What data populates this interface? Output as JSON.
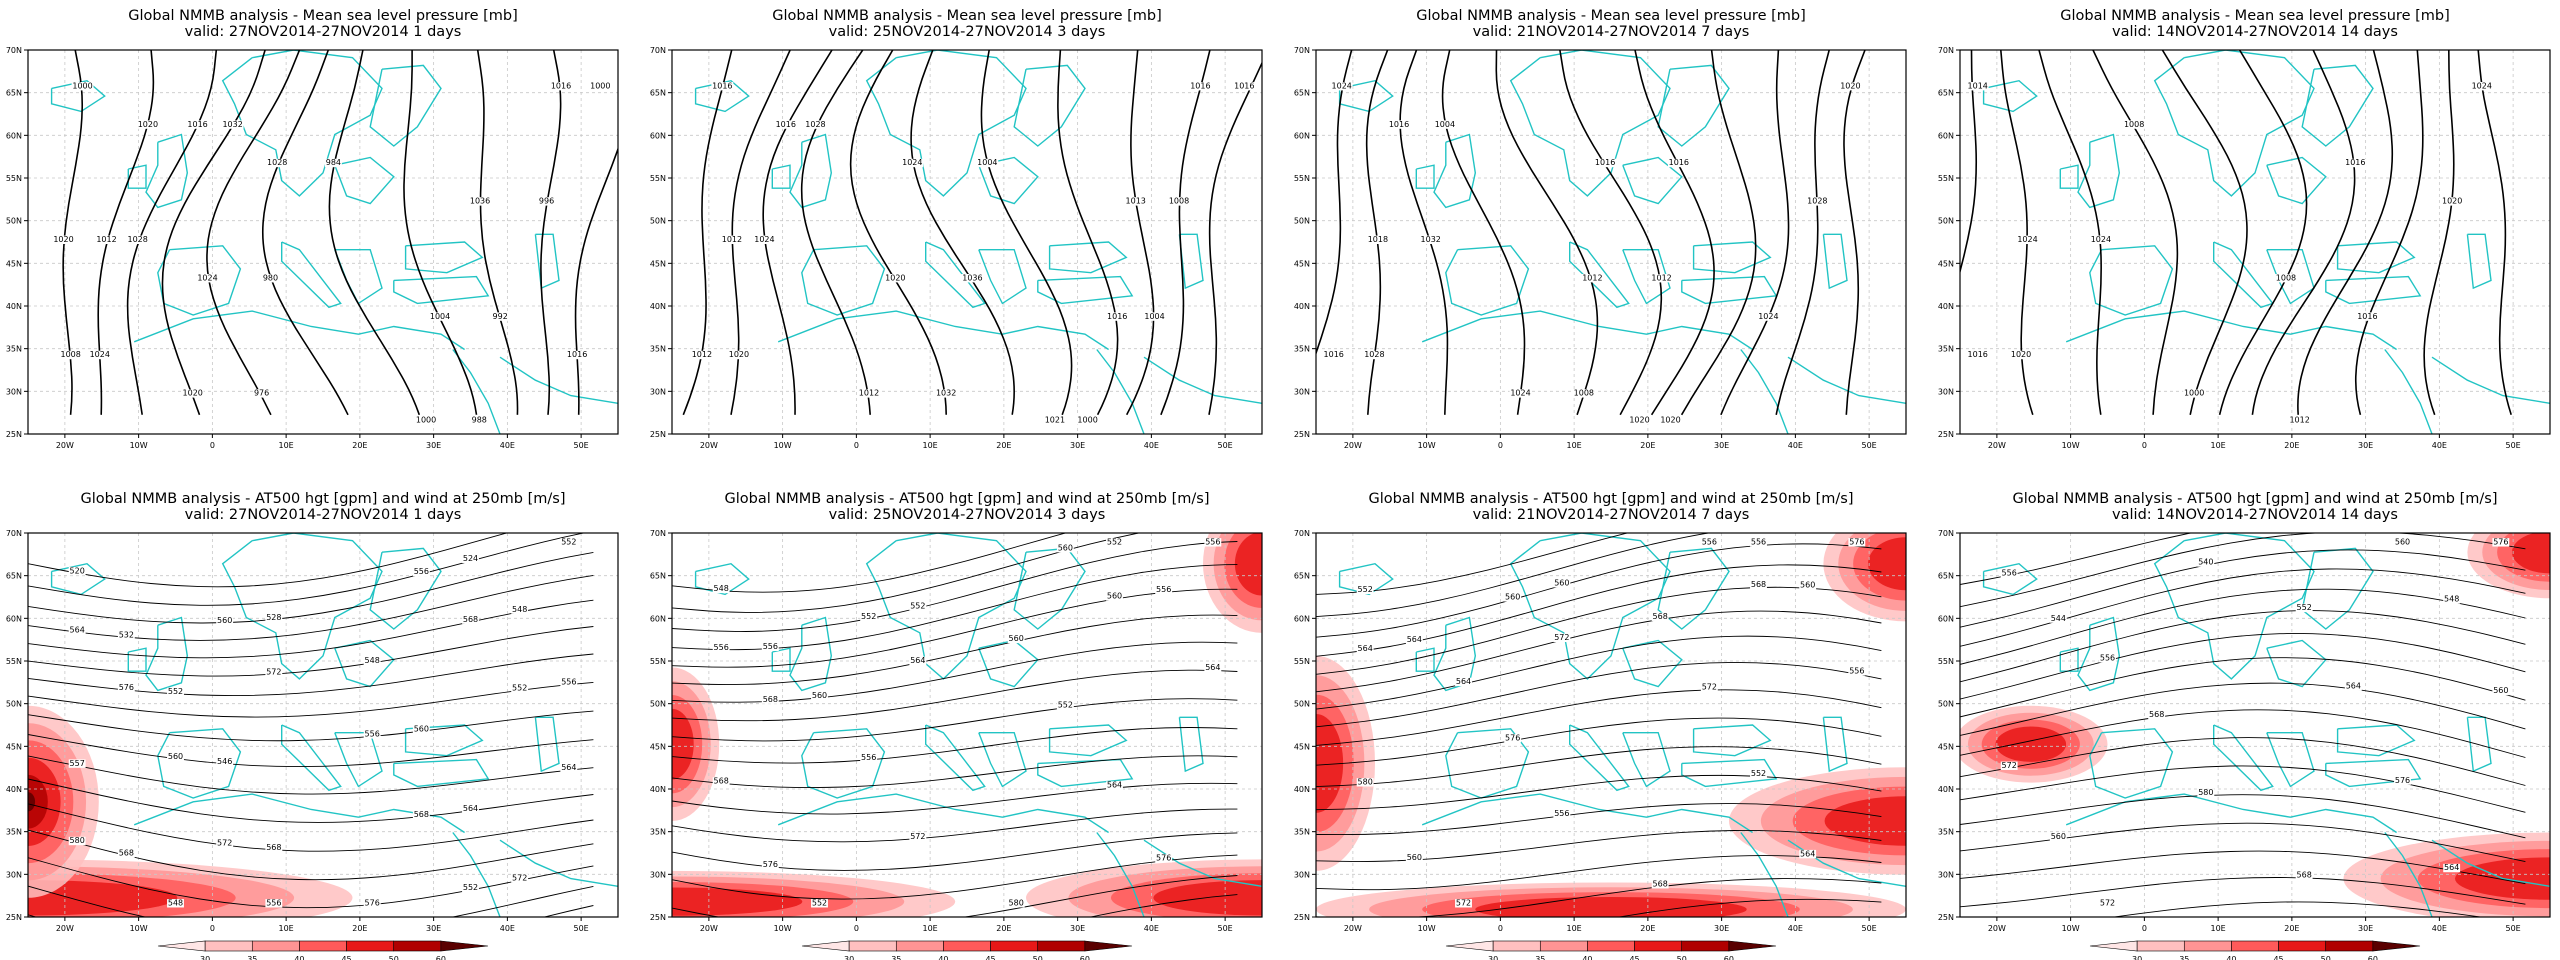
{
  "rows": [
    {
      "title": "Global NMMB analysis - Mean sea level pressure [mb]",
      "kind": "mslp",
      "panels": [
        {
          "valid": "valid: 27NOV2014-27NOV2014",
          "days": "1 days",
          "labels": [
            "1000",
            "1024",
            "1028",
            "1032",
            "976",
            "980",
            "984",
            "988",
            "992",
            "996",
            "1000",
            "1008",
            "1012",
            "1016",
            "1020",
            "1024",
            "1028",
            "1000",
            "1004",
            "1036",
            "1016",
            "1016",
            "1020",
            "1020"
          ]
        },
        {
          "valid": "valid: 25NOV2014-27NOV2014",
          "days": "3 days",
          "labels": [
            "1016",
            "1020",
            "1024",
            "1028",
            "1032",
            "1036",
            "1004",
            "1000",
            "1004",
            "1008",
            "1016",
            "1012",
            "1012",
            "1016",
            "1012",
            "1020",
            "1024",
            "1021",
            "1016",
            "1013",
            "1016"
          ]
        },
        {
          "valid": "valid: 21NOV2014-27NOV2014",
          "days": "7 days",
          "labels": [
            "1024",
            "1028",
            "1032",
            "1004",
            "1008",
            "1012",
            "1016",
            "1020",
            "1024",
            "1028",
            "1020",
            "1016",
            "1018",
            "1016",
            "1024",
            "1012",
            "1016",
            "1020"
          ]
        },
        {
          "valid": "valid: 14NOV2014-27NOV2014",
          "days": "14 days",
          "labels": [
            "1014",
            "1020",
            "1024",
            "1008",
            "1000",
            "1008",
            "1016",
            "1012",
            "1016",
            "1020",
            "1024",
            "1016",
            "1024"
          ]
        }
      ]
    },
    {
      "title": "Global NMMB analysis - AT500 hgt [gpm] and wind at 250mb [m/s]",
      "kind": "z500",
      "panels": [
        {
          "valid": "valid: 27NOV2014-27NOV2014",
          "days": "1 days",
          "labels": [
            "520",
            "524",
            "528",
            "532",
            "548",
            "548",
            "552",
            "556",
            "560",
            "546",
            "557",
            "564",
            "568",
            "568",
            "572",
            "576",
            "548",
            "552",
            "556",
            "560",
            "564",
            "568",
            "572",
            "576",
            "552",
            "556",
            "560",
            "564",
            "568",
            "572",
            "580",
            "552",
            "556"
          ]
        },
        {
          "valid": "valid: 25NOV2014-27NOV2014",
          "days": "3 days",
          "labels": [
            "548",
            "552",
            "552",
            "556",
            "556",
            "560",
            "560",
            "564",
            "552",
            "556",
            "568",
            "564",
            "572",
            "576",
            "576",
            "580",
            "552",
            "556",
            "560",
            "552",
            "556",
            "560",
            "564",
            "568"
          ]
        },
        {
          "valid": "valid: 21NOV2014-27NOV2014",
          "days": "7 days",
          "labels": [
            "552",
            "556",
            "560",
            "564",
            "560",
            "568",
            "564",
            "556",
            "572",
            "576",
            "580",
            "552",
            "556",
            "560",
            "564",
            "568",
            "572",
            "576",
            "556",
            "560",
            "564",
            "568",
            "572"
          ]
        },
        {
          "valid": "valid: 14NOV2014-27NOV2014",
          "days": "14 days",
          "labels": [
            "556",
            "560",
            "540",
            "544",
            "548",
            "552",
            "556",
            "560",
            "564",
            "568",
            "572",
            "576",
            "580",
            "560",
            "564",
            "568",
            "572",
            "576"
          ]
        }
      ]
    }
  ],
  "lat_ticks": [
    "70N",
    "65N",
    "60N",
    "55N",
    "50N",
    "45N",
    "40N",
    "35N",
    "30N",
    "25N"
  ],
  "lon_ticks": [
    "20W",
    "10W",
    "0",
    "10E",
    "20E",
    "30E",
    "40E",
    "50E"
  ],
  "colorbar_ticks": [
    "30",
    "35",
    "40",
    "45",
    "50",
    "60"
  ],
  "colorbar_colors": [
    "#ffe6e6",
    "#ffc0c0",
    "#ff9494",
    "#ff5a5a",
    "#e81818",
    "#b00000",
    "#5a0000"
  ],
  "colors": {
    "coast": "#22c4c4",
    "contour": "#000000",
    "grid": "#c8c8c8"
  },
  "chart_data": [
    {
      "type": "contour-map",
      "title": "Global NMMB analysis - Mean sea level pressure [mb]",
      "subtitle": "valid: 27NOV2014-27NOV2014 1 days",
      "xlim": [
        "25W",
        "55E"
      ],
      "ylim": [
        "25N",
        "70N"
      ],
      "contour_interval": 4,
      "units": "mb"
    },
    {
      "type": "contour-map",
      "title": "Global NMMB analysis - Mean sea level pressure [mb]",
      "subtitle": "valid: 25NOV2014-27NOV2014 3 days",
      "xlim": [
        "25W",
        "55E"
      ],
      "ylim": [
        "25N",
        "70N"
      ],
      "contour_interval": 4,
      "units": "mb"
    },
    {
      "type": "contour-map",
      "title": "Global NMMB analysis - Mean sea level pressure [mb]",
      "subtitle": "valid: 21NOV2014-27NOV2014 7 days",
      "xlim": [
        "25W",
        "55E"
      ],
      "ylim": [
        "25N",
        "70N"
      ],
      "contour_interval": 4,
      "units": "mb"
    },
    {
      "type": "contour-map",
      "title": "Global NMMB analysis - Mean sea level pressure [mb]",
      "subtitle": "valid: 14NOV2014-27NOV2014 14 days",
      "xlim": [
        "25W",
        "55E"
      ],
      "ylim": [
        "25N",
        "70N"
      ],
      "contour_interval": 4,
      "units": "mb"
    },
    {
      "type": "contour-map",
      "title": "Global NMMB analysis - AT500 hgt [gpm] and wind at 250mb [m/s]",
      "subtitle": "valid: 27NOV2014-27NOV2014 1 days",
      "xlim": [
        "25W",
        "55E"
      ],
      "ylim": [
        "25N",
        "70N"
      ],
      "contour_interval": 4,
      "shading_levels": [
        30,
        35,
        40,
        45,
        50,
        60
      ]
    },
    {
      "type": "contour-map",
      "title": "Global NMMB analysis - AT500 hgt [gpm] and wind at 250mb [m/s]",
      "subtitle": "valid: 25NOV2014-27NOV2014 3 days",
      "xlim": [
        "25W",
        "55E"
      ],
      "ylim": [
        "25N",
        "70N"
      ],
      "contour_interval": 4,
      "shading_levels": [
        30,
        35,
        40,
        45,
        50,
        60
      ]
    },
    {
      "type": "contour-map",
      "title": "Global NMMB analysis - AT500 hgt [gpm] and wind at 250mb [m/s]",
      "subtitle": "valid: 21NOV2014-27NOV2014 7 days",
      "xlim": [
        "25W",
        "55E"
      ],
      "ylim": [
        "25N",
        "70N"
      ],
      "contour_interval": 4,
      "shading_levels": [
        30,
        35,
        40,
        45,
        50,
        60
      ]
    },
    {
      "type": "contour-map",
      "title": "Global NMMB analysis - AT500 hgt [gpm] and wind at 250mb [m/s]",
      "subtitle": "valid: 14NOV2014-27NOV2014 14 days",
      "xlim": [
        "25W",
        "55E"
      ],
      "ylim": [
        "25N",
        "70N"
      ],
      "contour_interval": 4,
      "shading_levels": [
        30,
        35,
        40,
        45,
        50,
        60
      ]
    }
  ]
}
